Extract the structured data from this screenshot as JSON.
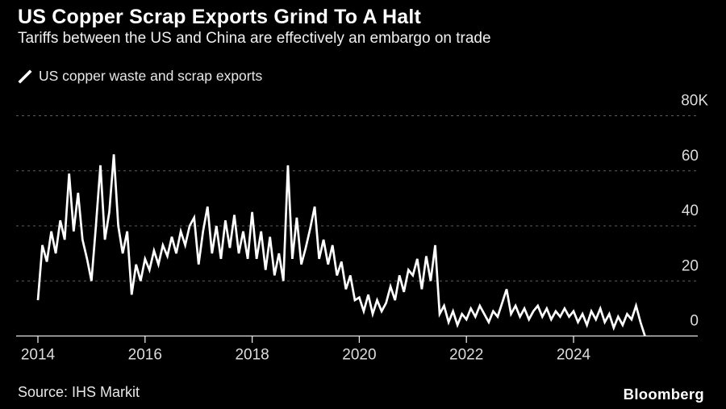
{
  "header": {
    "title": "US Copper Scrap Exports Grind To A Halt",
    "subtitle": "Tariffs between the US and China are effectively an embargo on trade"
  },
  "legend": {
    "label": "US copper waste and scrap exports",
    "marker": "line-slash-icon",
    "series_color": "#ffffff"
  },
  "footer": {
    "source": "Source: IHS Markit",
    "brand": "Bloomberg"
  },
  "colors": {
    "background": "#000000",
    "series": "#ffffff",
    "grid": "#606060",
    "axis": "#e6e6e6",
    "tick_label": "#dcdcdc",
    "title": "#ffffff",
    "subtitle": "#f0f0f0"
  },
  "chart_data": {
    "type": "line",
    "title": "US copper waste and scrap exports",
    "series_name": "US copper waste and scrap exports",
    "ylabel": "",
    "xlabel": "",
    "unit": "K (thousands of tonnes)",
    "grid": "dashed-horizontal",
    "legend_position": "top-left",
    "axis_side": "right",
    "ylim": [
      0,
      80
    ],
    "xlim": [
      2013.6,
      2026.3
    ],
    "x_ticks": [
      2014,
      2016,
      2018,
      2020,
      2022,
      2024
    ],
    "y_ticks": [
      {
        "value": 80,
        "label": "80K"
      },
      {
        "value": 60,
        "label": "60"
      },
      {
        "value": 40,
        "label": "40"
      },
      {
        "value": 20,
        "label": "20"
      },
      {
        "value": 0,
        "label": "0"
      }
    ],
    "x_start_year": 2014.0,
    "x_step_years": 0.0833333,
    "values": [
      13,
      33,
      27,
      38,
      30,
      42,
      35,
      59,
      38,
      52,
      35,
      28,
      20,
      40,
      62,
      35,
      45,
      66,
      40,
      30,
      38,
      15,
      26,
      20,
      28,
      24,
      31,
      26,
      33,
      29,
      36,
      30,
      38,
      33,
      40,
      43,
      26,
      38,
      47,
      30,
      40,
      28,
      42,
      32,
      44,
      30,
      38,
      28,
      45,
      28,
      38,
      24,
      36,
      22,
      30,
      20,
      62,
      28,
      43,
      26,
      32,
      39,
      47,
      28,
      35,
      26,
      33,
      22,
      27,
      17,
      22,
      13,
      14,
      9,
      15,
      8,
      13,
      9,
      12,
      18,
      13,
      22,
      16,
      24,
      22,
      28,
      17,
      29,
      20,
      33,
      8,
      11,
      5,
      9,
      4,
      8,
      6,
      10,
      7,
      11,
      8,
      5,
      9,
      7,
      12,
      17,
      8,
      11,
      7,
      10,
      6,
      9,
      11,
      7,
      10,
      6,
      9,
      7,
      10,
      7,
      9,
      5,
      8,
      4,
      9,
      6,
      10,
      5,
      8,
      3,
      7,
      4,
      8,
      6,
      11,
      5,
      0
    ]
  }
}
